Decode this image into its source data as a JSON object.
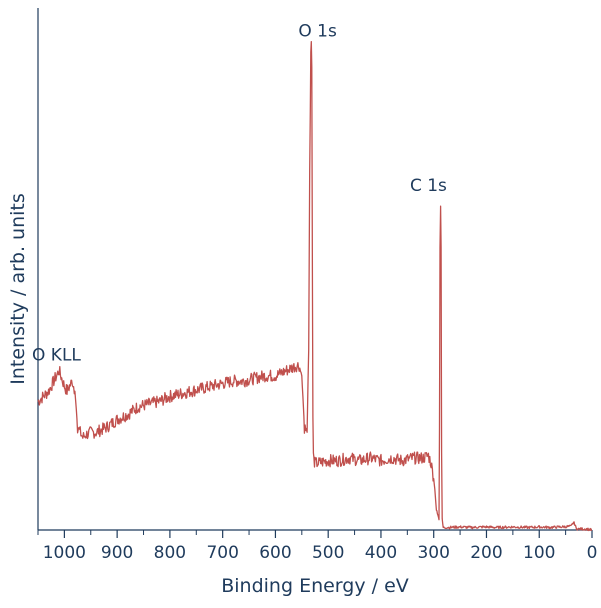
{
  "chart_data": {
    "type": "line",
    "xlabel": "Binding Energy / eV",
    "ylabel": "Intensity / arb. units",
    "xlim": [
      1050,
      0
    ],
    "x_reversed": true,
    "ylim": [
      0,
      1
    ],
    "y_ticks_shown": false,
    "x_ticks": [
      1000,
      900,
      800,
      700,
      600,
      500,
      400,
      300,
      200,
      100,
      0
    ],
    "x_tick_labels": [
      "1000",
      "900",
      "800",
      "700",
      "600",
      "500",
      "400",
      "300",
      "200",
      "100",
      "0"
    ],
    "grid": false,
    "line_color": "#c0504d",
    "text_color": "#1f3b5c",
    "series": [
      {
        "x": [
          1050,
          1040,
          1030,
          1020,
          1010,
          1000,
          995,
          990,
          985,
          980,
          975,
          970,
          965,
          960,
          950,
          940,
          920,
          900,
          880,
          860,
          840,
          820,
          800,
          780,
          760,
          740,
          720,
          700,
          680,
          660,
          640,
          620,
          600,
          580,
          570,
          560,
          555,
          550,
          548,
          545,
          540,
          537,
          535,
          533,
          532,
          531,
          530,
          529,
          528,
          527,
          525,
          520,
          500,
          480,
          460,
          440,
          420,
          400,
          380,
          360,
          340,
          320,
          310,
          305,
          300,
          298,
          295,
          292,
          290,
          289,
          288,
          287,
          286,
          285,
          284,
          282,
          280,
          270,
          250,
          230,
          200,
          180,
          150,
          120,
          100,
          80,
          60,
          40,
          35,
          32,
          30,
          25,
          20,
          10,
          0
        ],
        "y": [
          0.25,
          0.26,
          0.27,
          0.29,
          0.31,
          0.28,
          0.27,
          0.28,
          0.29,
          0.27,
          0.2,
          0.19,
          0.18,
          0.185,
          0.19,
          0.19,
          0.2,
          0.215,
          0.225,
          0.24,
          0.245,
          0.25,
          0.26,
          0.265,
          0.27,
          0.275,
          0.28,
          0.285,
          0.29,
          0.29,
          0.295,
          0.3,
          0.3,
          0.31,
          0.315,
          0.32,
          0.32,
          0.3,
          0.26,
          0.2,
          0.19,
          0.35,
          0.7,
          0.93,
          0.95,
          0.9,
          0.5,
          0.22,
          0.15,
          0.135,
          0.13,
          0.13,
          0.135,
          0.135,
          0.14,
          0.135,
          0.14,
          0.135,
          0.14,
          0.135,
          0.14,
          0.14,
          0.145,
          0.13,
          0.1,
          0.08,
          0.04,
          0.03,
          0.02,
          0.2,
          0.55,
          0.63,
          0.55,
          0.15,
          0.02,
          0.005,
          0.005,
          0.005,
          0.006,
          0.005,
          0.006,
          0.005,
          0.006,
          0.005,
          0.006,
          0.005,
          0.006,
          0.007,
          0.015,
          0.01,
          0.003,
          0.002,
          0.002,
          0.002,
          0.0
        ]
      }
    ],
    "annotations": [
      {
        "text": "O 1s",
        "x": 520,
        "y": 0.96
      },
      {
        "text": "C 1s",
        "x": 310,
        "y": 0.66
      },
      {
        "text": "O KLL",
        "x": 1015,
        "y": 0.33
      }
    ]
  }
}
